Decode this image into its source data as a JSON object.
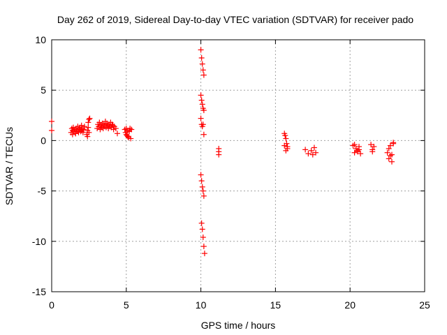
{
  "chart_data": {
    "type": "scatter",
    "title": "Day 262 of 2019, Sidereal Day-to-day VTEC variation (SDTVAR) for receiver pado",
    "xlabel": "GPS time / hours",
    "ylabel": "SDTVAR / TECUs",
    "xlim": [
      0,
      25
    ],
    "ylim": [
      -15,
      10
    ],
    "xticks": [
      0,
      5,
      10,
      15,
      20,
      25
    ],
    "yticks": [
      -15,
      -10,
      -5,
      0,
      5,
      10
    ],
    "grid": true,
    "marker": "+",
    "marker_color": "#ff0000",
    "series": [
      {
        "name": "SDTVAR",
        "x": [
          0.0,
          0.0,
          1.3,
          1.35,
          1.4,
          1.45,
          1.5,
          1.55,
          1.6,
          1.65,
          1.7,
          1.75,
          1.8,
          1.85,
          1.9,
          1.95,
          2.0,
          2.05,
          2.1,
          2.15,
          2.2,
          1.4,
          1.6,
          1.8,
          2.0,
          2.35,
          2.4,
          2.45,
          2.5,
          2.55,
          2.4,
          2.45,
          2.5,
          3.05,
          3.1,
          3.15,
          3.2,
          3.25,
          3.3,
          3.35,
          3.4,
          3.45,
          3.5,
          3.55,
          3.6,
          3.65,
          3.7,
          3.75,
          3.8,
          3.85,
          3.9,
          3.95,
          4.0,
          4.05,
          4.1,
          4.15,
          4.2,
          4.3,
          4.4,
          4.9,
          4.95,
          5.0,
          5.05,
          5.1,
          5.15,
          5.2,
          5.25,
          5.3,
          5.35,
          5.0,
          5.1,
          5.2,
          10.0,
          10.05,
          10.1,
          10.15,
          10.2,
          10.0,
          10.05,
          10.1,
          10.15,
          10.2,
          10.0,
          10.05,
          10.1,
          10.15,
          10.2,
          10.0,
          10.05,
          10.1,
          10.15,
          10.2,
          10.05,
          10.1,
          10.15,
          10.2,
          10.25,
          11.2,
          11.2,
          11.2,
          15.6,
          15.65,
          15.7,
          15.75,
          15.8,
          15.6,
          15.7,
          15.8,
          17.0,
          17.2,
          17.4,
          17.5,
          17.6,
          17.7,
          20.2,
          20.3,
          20.4,
          20.5,
          20.6,
          20.7,
          20.3,
          20.5,
          20.6,
          21.4,
          21.5,
          21.6,
          21.5,
          22.5,
          22.6,
          22.7,
          22.8,
          22.9,
          22.6,
          22.7,
          22.8,
          22.9
        ],
        "y": [
          1.9,
          1.0,
          0.8,
          1.2,
          1.0,
          1.3,
          0.9,
          1.1,
          0.7,
          1.2,
          1.0,
          1.4,
          0.8,
          1.1,
          1.3,
          0.9,
          1.0,
          1.2,
          0.8,
          1.1,
          1.4,
          0.6,
          0.7,
          0.9,
          1.5,
          0.6,
          1.0,
          1.8,
          2.1,
          2.2,
          0.4,
          1.3,
          0.8,
          1.2,
          1.6,
          1.4,
          1.8,
          1.1,
          1.5,
          1.3,
          1.7,
          1.2,
          1.6,
          1.4,
          1.9,
          1.3,
          1.7,
          1.5,
          1.2,
          1.6,
          1.4,
          1.8,
          1.3,
          1.6,
          1.5,
          1.1,
          1.4,
          1.2,
          0.7,
          1.1,
          0.8,
          1.2,
          0.5,
          1.0,
          0.3,
          0.9,
          1.2,
          0.2,
          1.1,
          0.6,
          0.4,
          1.0,
          9.0,
          8.2,
          7.6,
          7.0,
          6.5,
          4.5,
          4.0,
          3.6,
          3.2,
          3.0,
          2.2,
          1.6,
          1.4,
          1.6,
          0.6,
          -3.4,
          -4.0,
          -4.6,
          -5.0,
          -5.5,
          -8.2,
          -8.8,
          -9.6,
          -10.5,
          -11.2,
          -0.8,
          -1.1,
          -1.4,
          0.7,
          0.5,
          0.2,
          -0.3,
          -0.8,
          -0.5,
          -1.0,
          -0.6,
          -0.9,
          -1.3,
          -1.0,
          -1.4,
          -0.7,
          -1.2,
          -0.5,
          -1.2,
          -0.8,
          -1.1,
          -0.6,
          -1.3,
          -0.4,
          -1.0,
          -0.9,
          -0.4,
          -0.9,
          -0.6,
          -1.1,
          -1.2,
          -1.8,
          -1.5,
          -2.1,
          -0.3,
          -0.8,
          -0.5,
          -1.4,
          -0.2
        ]
      }
    ]
  }
}
